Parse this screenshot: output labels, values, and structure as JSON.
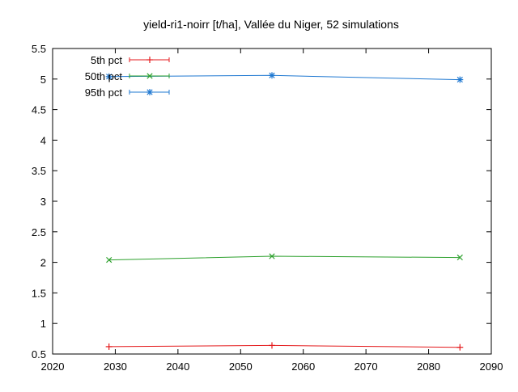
{
  "chart_data": {
    "type": "line",
    "title": "yield-ri1-noirr [t/ha], Vallée du Niger, 52 simulations",
    "xlabel": "",
    "ylabel": "",
    "xlim": [
      2020,
      2090
    ],
    "ylim": [
      0.5,
      5.5
    ],
    "xticks": [
      2020,
      2030,
      2040,
      2050,
      2060,
      2070,
      2080,
      2090
    ],
    "yticks": [
      0.5,
      1,
      1.5,
      2,
      2.5,
      3,
      3.5,
      4,
      4.5,
      5,
      5.5
    ],
    "grid": false,
    "legend_position": "top-left",
    "series": [
      {
        "name": "5th pct",
        "color": "#e41a1c",
        "marker": "plus",
        "x": [
          2029,
          2055,
          2085
        ],
        "y": [
          0.62,
          0.64,
          0.61
        ]
      },
      {
        "name": "50th pct",
        "color": "#2ca02c",
        "marker": "cross",
        "x": [
          2029,
          2055,
          2085
        ],
        "y": [
          2.04,
          2.1,
          2.08
        ]
      },
      {
        "name": "95th pct",
        "color": "#1f78d1",
        "marker": "star",
        "x": [
          2029,
          2055,
          2085
        ],
        "y": [
          5.04,
          5.06,
          4.99
        ]
      }
    ]
  }
}
